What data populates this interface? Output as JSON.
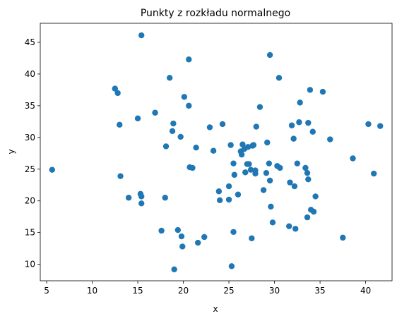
{
  "chart_data": {
    "type": "scatter",
    "title": "Punkty z rozkładu normalnego",
    "xlabel": "x",
    "ylabel": "y",
    "xlim": [
      4.3,
      42.9
    ],
    "ylim": [
      7.4,
      48.0
    ],
    "xticks": [
      5,
      10,
      15,
      20,
      25,
      30,
      35,
      40
    ],
    "yticks": [
      10,
      15,
      20,
      25,
      30,
      35,
      40,
      45
    ],
    "grid": false,
    "marker_color": "#1f77b4",
    "series": [
      {
        "points": [
          [
            5.6,
            24.9
          ],
          [
            12.5,
            37.7
          ],
          [
            12.8,
            37.0
          ],
          [
            13.0,
            32.0
          ],
          [
            13.1,
            23.9
          ],
          [
            14.0,
            20.5
          ],
          [
            15.0,
            33.0
          ],
          [
            15.3,
            21.1
          ],
          [
            15.4,
            20.7
          ],
          [
            15.4,
            19.6
          ],
          [
            15.4,
            46.1
          ],
          [
            16.9,
            33.9
          ],
          [
            17.6,
            15.3
          ],
          [
            18.0,
            20.5
          ],
          [
            18.1,
            28.6
          ],
          [
            18.5,
            39.4
          ],
          [
            18.8,
            31.0
          ],
          [
            18.9,
            32.2
          ],
          [
            19.0,
            9.2
          ],
          [
            19.4,
            15.4
          ],
          [
            19.7,
            30.1
          ],
          [
            19.8,
            14.4
          ],
          [
            19.9,
            12.8
          ],
          [
            20.1,
            36.4
          ],
          [
            20.6,
            42.3
          ],
          [
            20.6,
            35.0
          ],
          [
            20.7,
            25.3
          ],
          [
            21.0,
            25.2
          ],
          [
            21.4,
            28.4
          ],
          [
            21.6,
            13.4
          ],
          [
            22.3,
            14.3
          ],
          [
            22.9,
            31.6
          ],
          [
            23.3,
            27.9
          ],
          [
            23.9,
            21.5
          ],
          [
            24.0,
            20.1
          ],
          [
            24.3,
            32.1
          ],
          [
            25.0,
            20.2
          ],
          [
            25.0,
            22.3
          ],
          [
            25.2,
            28.8
          ],
          [
            25.3,
            9.7
          ],
          [
            25.5,
            25.9
          ],
          [
            25.5,
            15.1
          ],
          [
            25.6,
            24.1
          ],
          [
            26.0,
            21.0
          ],
          [
            26.3,
            27.8
          ],
          [
            26.4,
            27.3
          ],
          [
            26.5,
            28.9
          ],
          [
            26.7,
            28.2
          ],
          [
            26.8,
            24.5
          ],
          [
            27.0,
            25.8
          ],
          [
            27.1,
            28.5
          ],
          [
            27.2,
            25.8
          ],
          [
            27.4,
            24.9
          ],
          [
            27.5,
            14.1
          ],
          [
            27.6,
            28.7
          ],
          [
            27.7,
            28.8
          ],
          [
            27.9,
            24.3
          ],
          [
            27.9,
            24.8
          ],
          [
            28.0,
            31.7
          ],
          [
            28.4,
            34.8
          ],
          [
            28.8,
            21.7
          ],
          [
            29.1,
            24.4
          ],
          [
            29.2,
            29.2
          ],
          [
            29.4,
            25.9
          ],
          [
            29.5,
            23.2
          ],
          [
            29.5,
            43.0
          ],
          [
            29.6,
            19.1
          ],
          [
            29.8,
            16.6
          ],
          [
            30.3,
            25.5
          ],
          [
            30.5,
            39.4
          ],
          [
            30.6,
            25.2
          ],
          [
            31.6,
            16.0
          ],
          [
            31.7,
            22.9
          ],
          [
            31.9,
            31.9
          ],
          [
            32.1,
            29.8
          ],
          [
            32.2,
            22.3
          ],
          [
            32.3,
            15.6
          ],
          [
            32.5,
            25.9
          ],
          [
            32.7,
            32.4
          ],
          [
            32.8,
            35.5
          ],
          [
            33.4,
            25.2
          ],
          [
            33.6,
            17.4
          ],
          [
            33.6,
            24.4
          ],
          [
            33.7,
            23.4
          ],
          [
            33.7,
            32.3
          ],
          [
            33.9,
            37.5
          ],
          [
            34.0,
            18.6
          ],
          [
            34.2,
            30.9
          ],
          [
            34.3,
            18.3
          ],
          [
            34.5,
            20.7
          ],
          [
            35.3,
            37.2
          ],
          [
            36.1,
            29.7
          ],
          [
            37.5,
            14.2
          ],
          [
            38.6,
            26.7
          ],
          [
            40.3,
            32.1
          ],
          [
            40.9,
            24.3
          ],
          [
            41.6,
            31.8
          ]
        ]
      }
    ]
  }
}
